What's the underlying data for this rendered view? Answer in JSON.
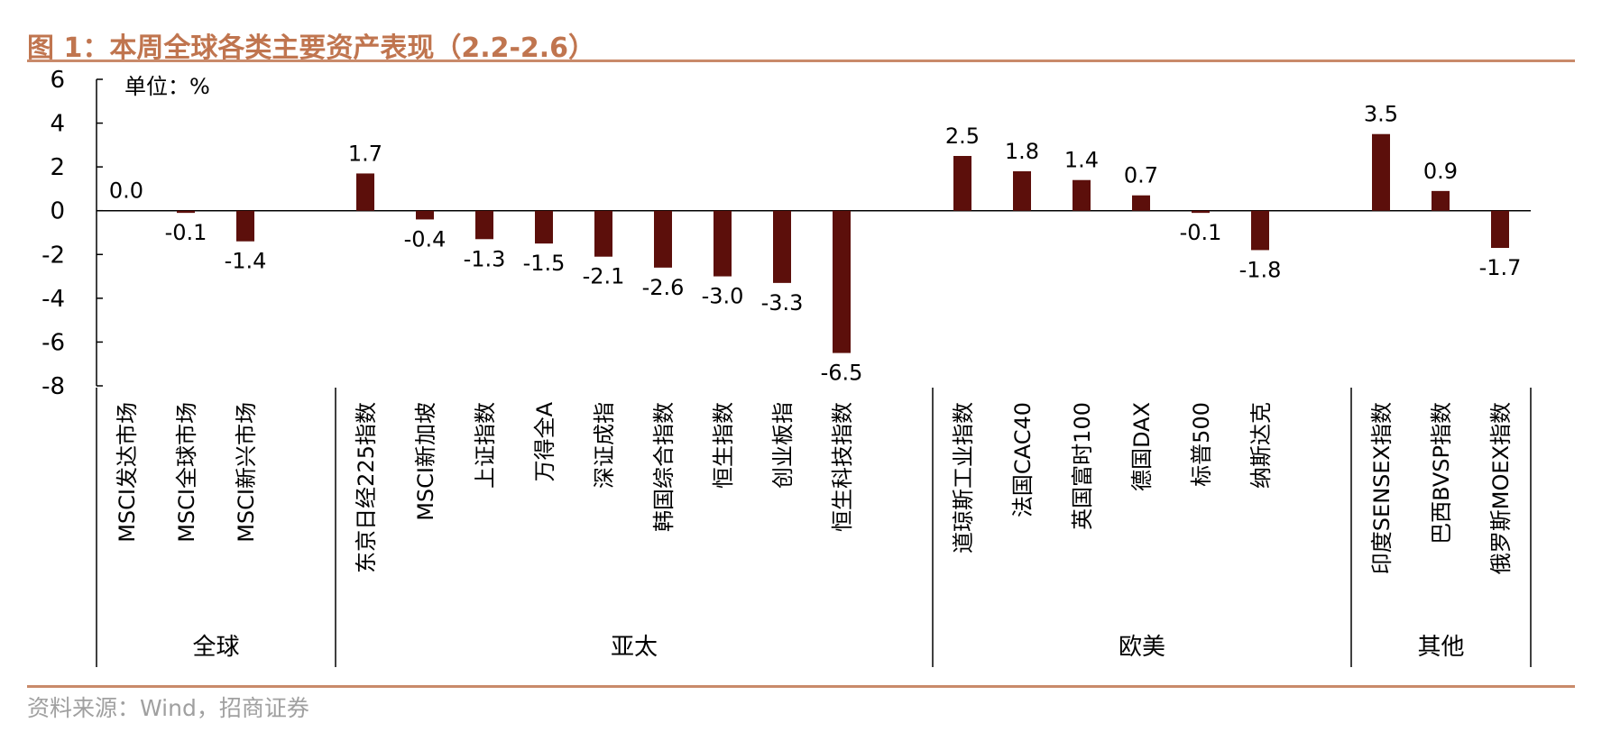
{
  "figure": {
    "title": "图 1：本周全球各类主要资产表现（2.2-2.6）",
    "source": "资料来源：Wind，招商证券"
  },
  "chart_data": {
    "type": "bar",
    "title": "图 1：本周全球各类主要资产表现（2.2-2.6）",
    "unit_label": "单位：%",
    "ylim": [
      -8,
      6
    ],
    "yticks": [
      6,
      4,
      2,
      0,
      -2,
      -4,
      -6,
      -8
    ],
    "bar_color": "#5c0f0b",
    "grid": false,
    "categories": [
      "MSCI发达市场",
      "MSCI全球市场",
      "MSCI新兴市场",
      "东京日经225指数",
      "MSCI新加坡",
      "上证指数",
      "万得全A",
      "深证成指",
      "韩国综合指数",
      "恒生指数",
      "创业板指",
      "恒生科技指数",
      "道琼斯工业指数",
      "法国CAC40",
      "英国富时100",
      "德国DAX",
      "标普500",
      "纳斯达克",
      "印度SENSEX指数",
      "巴西BVSP指数",
      "俄罗斯MOEX指数"
    ],
    "values": [
      0.0,
      -0.1,
      -1.4,
      1.7,
      -0.4,
      -1.3,
      -1.5,
      -2.1,
      -2.6,
      -3.0,
      -3.3,
      -6.5,
      2.5,
      1.8,
      1.4,
      0.7,
      -0.1,
      -1.8,
      3.5,
      0.9,
      -1.7
    ],
    "value_labels": [
      "0.0",
      "-0.1",
      "-1.4",
      "1.7",
      "-0.4",
      "-1.3",
      "-1.5",
      "-2.1",
      "-2.6",
      "-3.0",
      "-3.3",
      "-6.5",
      "2.5",
      "1.8",
      "1.4",
      "0.7",
      "-0.1",
      "-1.8",
      "3.5",
      "0.9",
      "-1.7"
    ],
    "groups": [
      {
        "name": "全球",
        "start": 0,
        "end": 2
      },
      {
        "name": "亚太",
        "start": 3,
        "end": 11
      },
      {
        "name": "欧美",
        "start": 12,
        "end": 17
      },
      {
        "name": "其他",
        "start": 18,
        "end": 20
      }
    ]
  }
}
